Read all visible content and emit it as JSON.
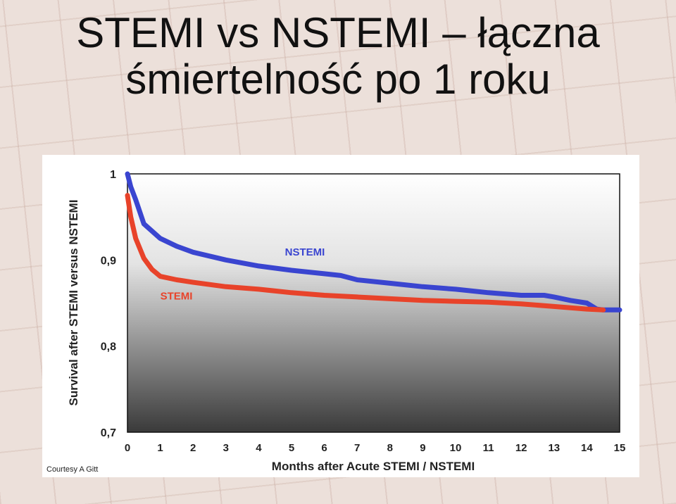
{
  "slide": {
    "title_line1": "STEMI vs NSTEMI – łączna",
    "title_line2": "śmiertelność po 1 roku"
  },
  "chart_data": {
    "type": "line",
    "title": "",
    "xlabel": "Months after Acute STEMI / NSTEMI",
    "ylabel": "Survival after STEMI versus NSTEMI",
    "xlim": [
      0,
      15
    ],
    "ylim": [
      0.7,
      1.0
    ],
    "x_ticks": [
      "0",
      "1",
      "2",
      "3",
      "4",
      "5",
      "6",
      "7",
      "8",
      "9",
      "10",
      "11",
      "12",
      "13",
      "14",
      "15"
    ],
    "y_ticks": [
      {
        "value": 0.7,
        "label": "0,7"
      },
      {
        "value": 0.8,
        "label": "0,8"
      },
      {
        "value": 0.9,
        "label": "0,9"
      },
      {
        "value": 1.0,
        "label": "1"
      }
    ],
    "grid": false,
    "series": [
      {
        "name": "NSTEMI",
        "color": "#3a45d0",
        "x": [
          0,
          0.1,
          0.25,
          0.5,
          1,
          1.5,
          2,
          3,
          4,
          5,
          6,
          6.5,
          7,
          8,
          9,
          10,
          11,
          12,
          12.7,
          13,
          13.5,
          14,
          14.3,
          14.5,
          15
        ],
        "y": [
          1.0,
          0.985,
          0.97,
          0.942,
          0.925,
          0.916,
          0.909,
          0.9,
          0.893,
          0.888,
          0.884,
          0.882,
          0.877,
          0.873,
          0.869,
          0.866,
          0.862,
          0.859,
          0.859,
          0.857,
          0.853,
          0.85,
          0.843,
          0.842,
          0.842
        ]
      },
      {
        "name": "STEMI",
        "color": "#e8432a",
        "x": [
          0,
          0.1,
          0.25,
          0.5,
          0.75,
          1,
          1.5,
          2,
          3,
          4,
          5,
          6,
          7,
          8,
          9,
          10,
          11,
          12,
          13,
          14,
          14.5
        ],
        "y": [
          0.975,
          0.95,
          0.925,
          0.902,
          0.889,
          0.881,
          0.877,
          0.874,
          0.869,
          0.866,
          0.862,
          0.859,
          0.857,
          0.855,
          0.853,
          0.852,
          0.851,
          0.849,
          0.846,
          0.843,
          0.842
        ]
      }
    ],
    "annotations": [
      {
        "text": "NSTEMI",
        "series": "NSTEMI",
        "x": 4.8,
        "y": 0.905,
        "color": "#3a45d0"
      },
      {
        "text": "STEMI",
        "series": "STEMI",
        "x": 1.0,
        "y": 0.854,
        "color": "#e8432a"
      }
    ],
    "credit": "Courtesy A Gitt"
  }
}
